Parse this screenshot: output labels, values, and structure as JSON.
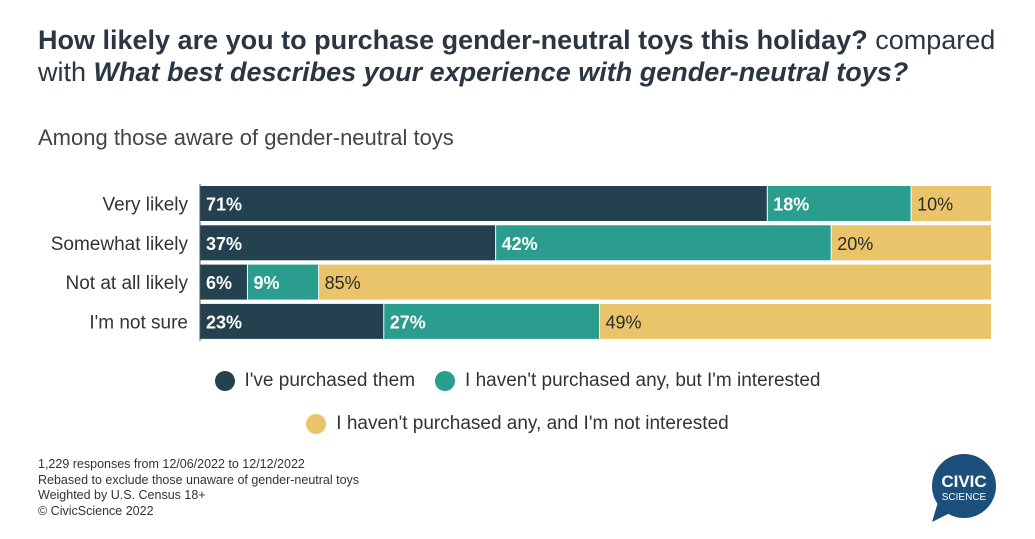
{
  "title": {
    "question1": "How likely are you to purchase gender-neutral toys this holiday?",
    "connector": "compared with",
    "question2": "What best describes your experience with gender-neutral toys?"
  },
  "subtitle": "Among those aware of gender-neutral toys",
  "colors": {
    "purchased": "#24414f",
    "interested": "#2a9d8f",
    "not_interested": "#e9c46a"
  },
  "chart_data": {
    "type": "bar",
    "orientation": "horizontal",
    "stacked": true,
    "categories": [
      "Very likely",
      "Somewhat likely",
      "Not at all likely",
      "I'm not sure"
    ],
    "series": [
      {
        "name": "I've purchased them",
        "values": [
          71,
          37,
          6,
          23
        ]
      },
      {
        "name": "I haven't purchased any, but I'm interested",
        "values": [
          18,
          42,
          9,
          27
        ]
      },
      {
        "name": "I haven't purchased any, and I'm not interested",
        "values": [
          10,
          20,
          85,
          49
        ]
      }
    ],
    "unit": "%",
    "legend_position": "bottom"
  },
  "legend": [
    "I've purchased them",
    "I haven't purchased any, but I'm interested",
    "I haven't purchased any, and I'm not interested"
  ],
  "notes": [
    "1,229 responses from 12/06/2022 to 12/12/2022",
    "Rebased to exclude those unaware of gender-neutral toys",
    "Weighted by U.S. Census 18+",
    "© CivicScience 2022"
  ],
  "logo": {
    "line1": "CIVIC",
    "line2": "SCIENCE",
    "color": "#1c4f7c"
  }
}
